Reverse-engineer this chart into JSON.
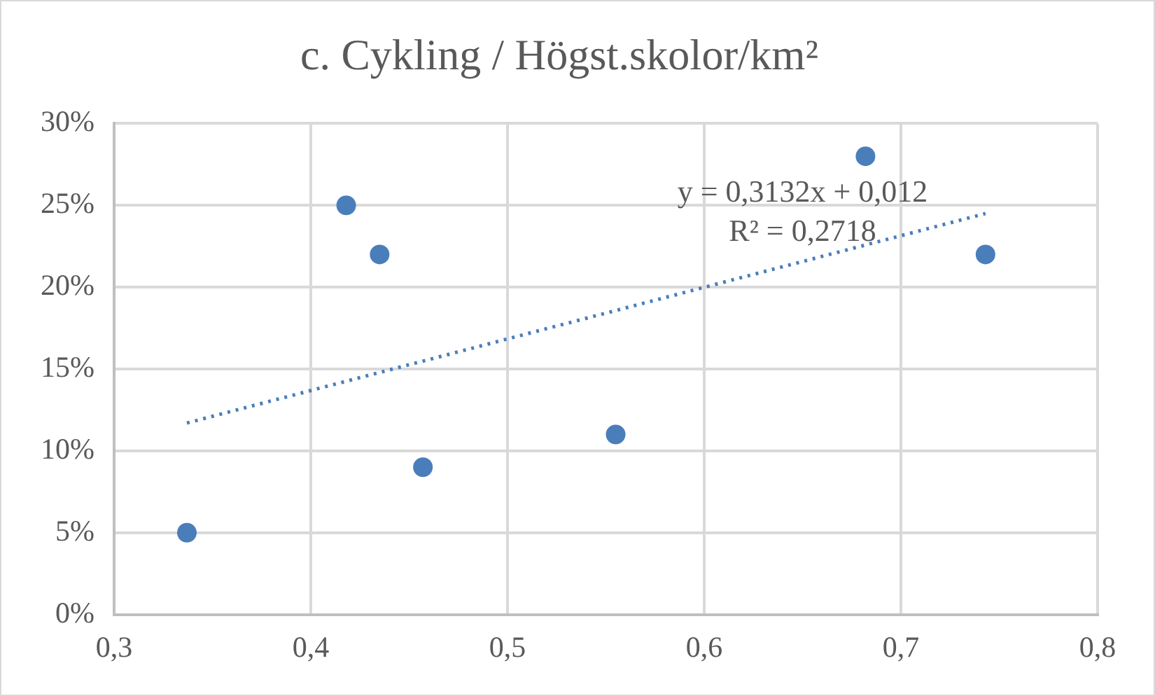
{
  "chart_data": {
    "type": "scatter",
    "title": "c. Cykling / Högst.skolor/km²",
    "series": [
      {
        "color": "#4a7ebb",
        "x": [
          0.337,
          0.418,
          0.435,
          0.457,
          0.555,
          0.682,
          0.743
        ],
        "values": [
          0.05,
          0.25,
          0.22,
          0.09,
          0.11,
          0.28,
          0.22
        ]
      },
      {
        "type": "line",
        "color": "#4a7ebb",
        "line_style": "dotted",
        "marker": "none",
        "x": [
          0.337,
          0.743
        ],
        "values": [
          0.117,
          0.245
        ]
      }
    ],
    "marker": "circle",
    "xlim": [
      0.3,
      0.8
    ],
    "xticks": [
      {
        "value": 0.3,
        "label": "0,3"
      },
      {
        "value": 0.4,
        "label": "0,4"
      },
      {
        "value": 0.5,
        "label": "0,5"
      },
      {
        "value": 0.6,
        "label": "0,6"
      },
      {
        "value": 0.7,
        "label": "0,7"
      },
      {
        "value": 0.8,
        "label": "0,8"
      }
    ],
    "ylim": [
      0,
      0.3
    ],
    "yticks": [
      {
        "value": 0,
        "label": "0%"
      },
      {
        "value": 0.05,
        "label": "5%"
      },
      {
        "value": 0.1,
        "label": "10%"
      },
      {
        "value": 0.15,
        "label": "15%"
      },
      {
        "value": 0.2,
        "label": "20%"
      },
      {
        "value": 0.25,
        "label": "25%"
      },
      {
        "value": 0.3,
        "label": "30%"
      }
    ],
    "grid": true,
    "legend": false,
    "annotations": [
      "y = 0,3132x + 0,012",
      "R² = 0,2718"
    ]
  }
}
